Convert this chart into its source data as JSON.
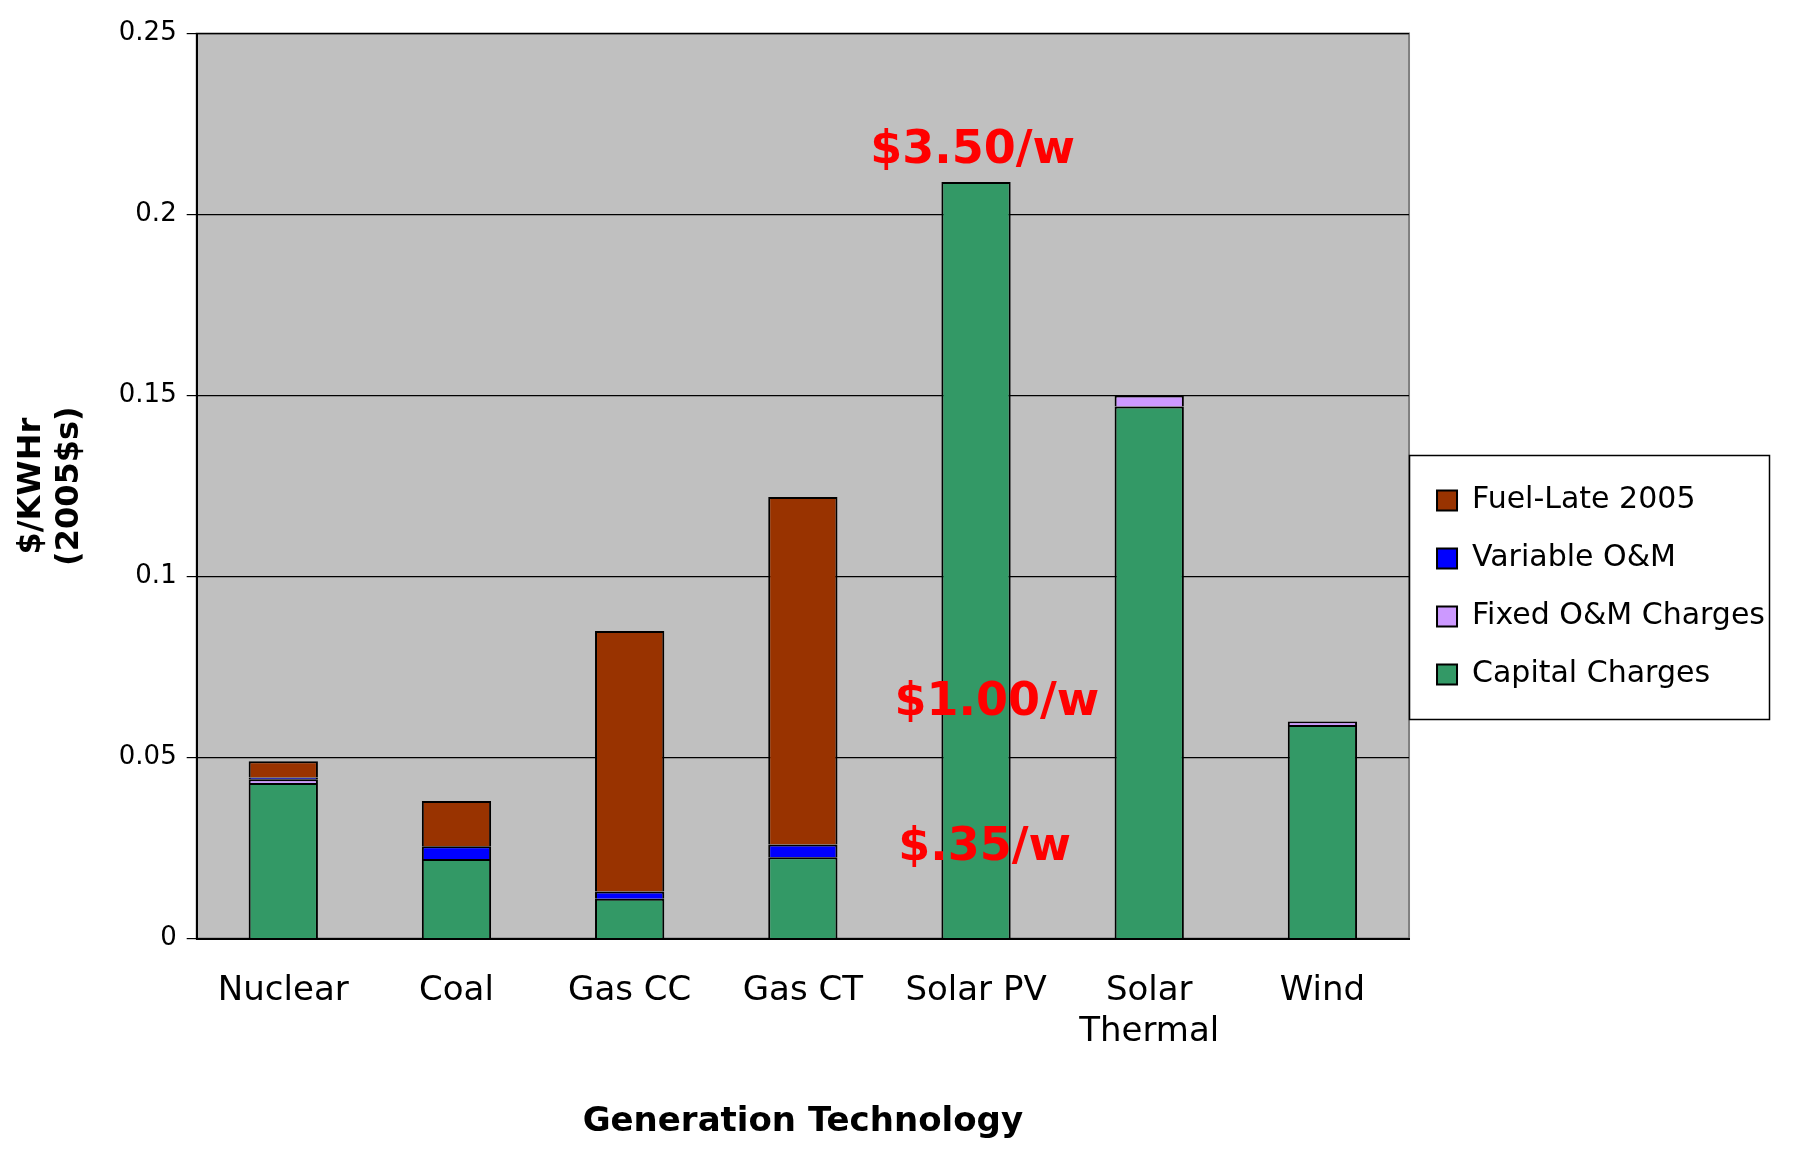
{
  "chart_data": {
    "type": "bar",
    "stacked": true,
    "xlabel": "Generation Technology",
    "ylabel": "$/KWHr\n(2005$s)",
    "categories": [
      "Nuclear",
      "Coal",
      "Gas CC",
      "Gas CT",
      "Solar PV",
      "Solar Thermal",
      "Wind"
    ],
    "series": [
      {
        "name": "Capital Charges",
        "color": "#339966",
        "values": [
          0.043,
          0.022,
          0.011,
          0.0225,
          0.209,
          0.147,
          0.059
        ]
      },
      {
        "name": "Fixed O&M Charges",
        "color": "#cc99ff",
        "values": [
          0.001,
          null,
          null,
          null,
          null,
          0.003,
          0.001
        ]
      },
      {
        "name": "Variable O&M",
        "color": "#0000ff",
        "values": [
          0.0005,
          0.0035,
          0.002,
          0.0035,
          null,
          null,
          null
        ]
      },
      {
        "name": "Fuel-Late 2005",
        "color": "#993300",
        "values": [
          0.0045,
          0.0125,
          0.072,
          0.096,
          null,
          null,
          null
        ]
      }
    ],
    "ylim": [
      0,
      0.25
    ],
    "yticks": [
      0,
      0.05,
      0.1,
      0.15,
      0.2,
      0.25
    ],
    "grid": "y",
    "legend": "right",
    "annotations": [
      "$3.50/w",
      "$1.00/w",
      "$.35/w"
    ]
  }
}
